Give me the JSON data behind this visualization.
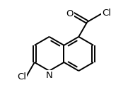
{
  "background_color": "#ffffff",
  "atom_color": "#000000",
  "bond_color": "#000000",
  "bond_width": 1.4,
  "figsize": [
    1.98,
    1.58
  ],
  "dpi": 100,
  "font_size": 9.5,
  "xlim": [
    0.0,
    1.05
  ],
  "ylim": [
    0.0,
    1.0
  ]
}
